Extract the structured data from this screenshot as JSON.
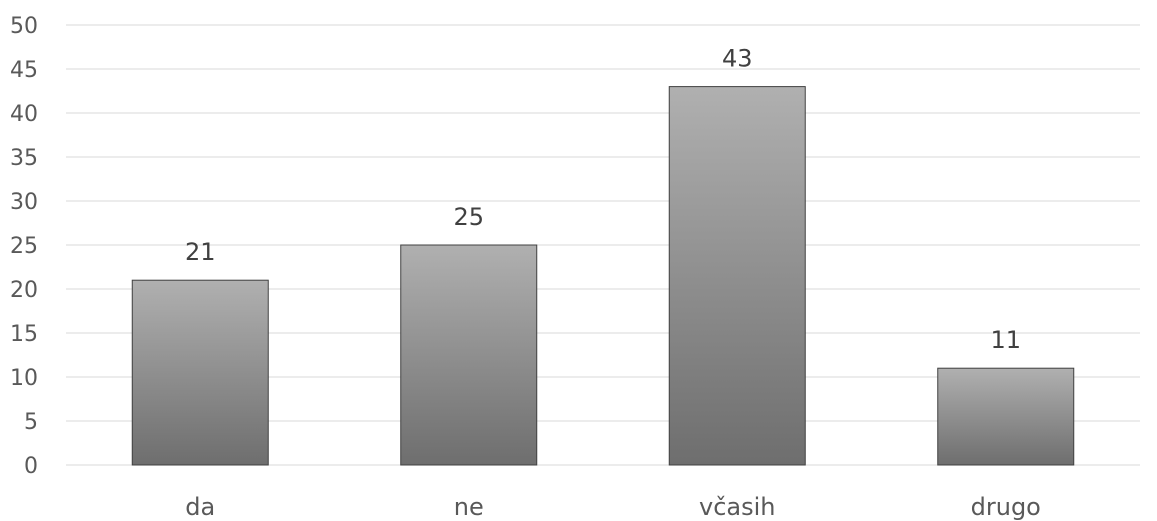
{
  "chart_data": {
    "type": "bar",
    "categories": [
      "da",
      "ne",
      "včasih",
      "drugo"
    ],
    "values": [
      21,
      25,
      43,
      11
    ],
    "title": "",
    "xlabel": "",
    "ylabel": "",
    "ylim": [
      0,
      50
    ],
    "ytick_step": 5,
    "y_ticks": [
      "0",
      "5",
      "10",
      "15",
      "20",
      "25",
      "30",
      "35",
      "40",
      "45",
      "50"
    ],
    "grid": true,
    "data_labels": true,
    "bar_gradient": [
      "#b0b0b0",
      "#6e6e6e"
    ],
    "bar_border": "#404040",
    "text_color": "#595959",
    "grid_color": "#d9d9d9"
  }
}
